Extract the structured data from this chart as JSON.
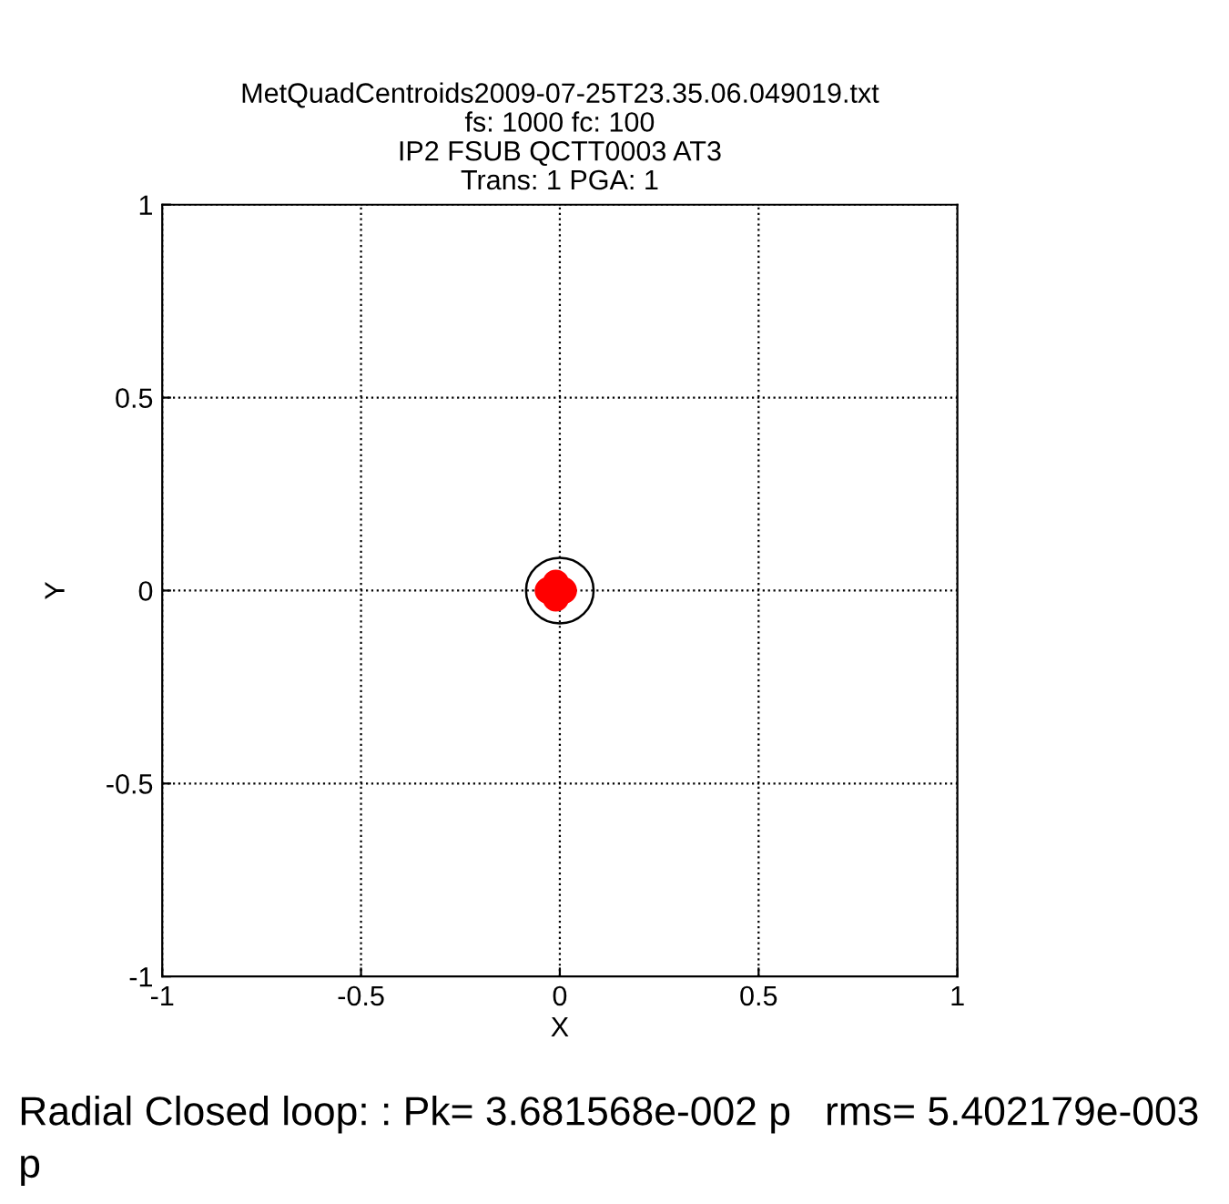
{
  "chart_data": {
    "type": "scatter",
    "title": "MetQuadCentroids2009-07-25T23.35.06.049019.txt\nfs: 1000 fc: 100\nIP2 FSUB QCTT0003 AT3\nTrans: 1 PGA: 1",
    "xlabel": "X",
    "ylabel": "Y",
    "xlim": [
      -1,
      1
    ],
    "ylim": [
      -1,
      1
    ],
    "xticks": [
      -1,
      -0.5,
      0,
      0.5,
      1
    ],
    "yticks": [
      -1,
      -0.5,
      0,
      0.5,
      1
    ],
    "grid": true,
    "marker": "circle",
    "series": [
      {
        "color": "#ff0000",
        "x": [
          -0.03,
          0.01,
          -0.01,
          -0.01
        ],
        "values": [
          0.0,
          0.0,
          0.02,
          -0.02
        ]
      }
    ],
    "annotations": [
      "Radial Closed loop: : Pk= 3.681568e-002 p   rms= 5.402179e-003 p"
    ]
  }
}
